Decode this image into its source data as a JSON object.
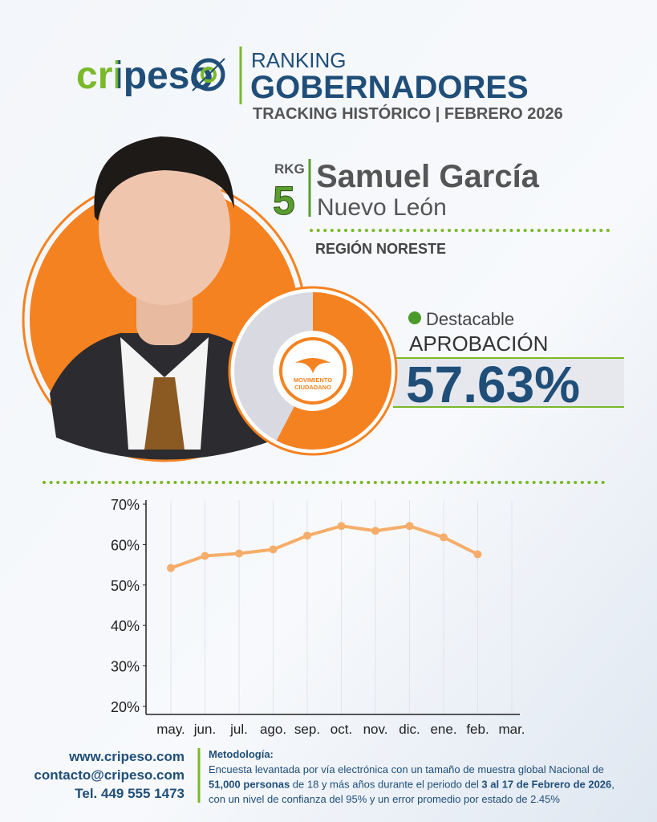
{
  "header": {
    "logo": "cripeso",
    "kicker": "RANKING",
    "title": "GOBERNADORES",
    "subtitle": "TRACKING HISTÓRICO | FEBRERO 2026"
  },
  "profile": {
    "rank_label": "RKG",
    "rank": 5,
    "name": "Samuel García",
    "state": "Nuevo León",
    "region": "REGIÓN NORESTE",
    "status": "Destacable",
    "approval_label": "APROBACIÓN",
    "approval": {
      "value": 57.63,
      "label": "57.63%"
    },
    "party": [
      "MOVIMIENTO",
      "CIUDADANO"
    ]
  },
  "chart_data": {
    "type": "line",
    "categories": [
      "may.",
      "jun.",
      "jul.",
      "ago.",
      "sep.",
      "oct.",
      "nov.",
      "dic.",
      "ene.",
      "feb.",
      "mar."
    ],
    "series": [
      {
        "name": "Aprobación",
        "color": "#f6ad6a",
        "values": [
          54.2,
          57.2,
          57.8,
          58.8,
          62.2,
          64.6,
          63.4,
          64.6,
          61.8,
          57.6,
          null
        ]
      }
    ],
    "ylim": [
      18,
      71
    ],
    "yticks": [
      {
        "value": 20,
        "label": "20%"
      },
      {
        "value": 30,
        "label": "30%"
      },
      {
        "value": 40,
        "label": "40%"
      },
      {
        "value": 50,
        "label": "50%"
      },
      {
        "value": 60,
        "label": "60%"
      },
      {
        "value": 70,
        "label": "70%"
      }
    ],
    "grid": true
  },
  "footer": {
    "web": "www.cripeso.com",
    "email": "contacto@cripeso.com",
    "phone": "Tel. 449 555 1473",
    "methodology": {
      "title": "Metodología:",
      "lines": [
        [
          {
            "text": "Encuesta levantada por vía electrónica con un tamaño de muestra global Nacional de",
            "bold": false
          }
        ],
        [
          {
            "text": "51,000 personas",
            "bold": true
          },
          {
            "text": " de 18 y más años durante el periodo del ",
            "bold": false
          },
          {
            "text": "3 al 17 de Febrero de 2026",
            "bold": true
          },
          {
            "text": ",",
            "bold": false
          }
        ],
        [
          {
            "text": "con un nivel de confianza del 95% y un error promedio por estado de 2.45%",
            "bold": false
          }
        ]
      ]
    }
  }
}
